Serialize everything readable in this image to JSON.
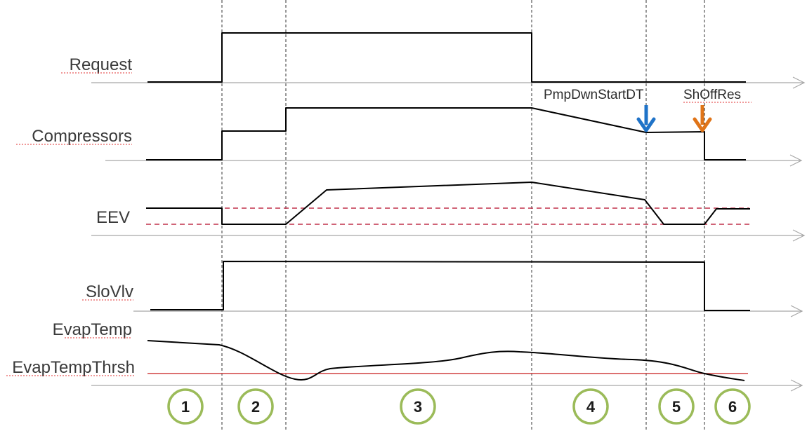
{
  "signals": [
    {
      "label": "Request"
    },
    {
      "label": "Compressors"
    },
    {
      "label": "EEV"
    },
    {
      "label": "SloVlv"
    },
    {
      "label": "EvapTemp"
    }
  ],
  "threshold_label": "EvapTempThrsh",
  "annotations": [
    {
      "text": "PmpDwnStartDT",
      "arrow_color": "#1f73c8"
    },
    {
      "text": "ShOffRes",
      "arrow_color": "#e07418"
    }
  ],
  "phases": [
    {
      "number": "1"
    },
    {
      "number": "2"
    },
    {
      "number": "3"
    },
    {
      "number": "4"
    },
    {
      "number": "5"
    },
    {
      "number": "6"
    }
  ],
  "colors": {
    "signal": "#000000",
    "axis": "#a6a6a6",
    "eev_limits": "#c0304a",
    "threshold": "#d04040",
    "phase_circle": "#9bbb59"
  }
}
